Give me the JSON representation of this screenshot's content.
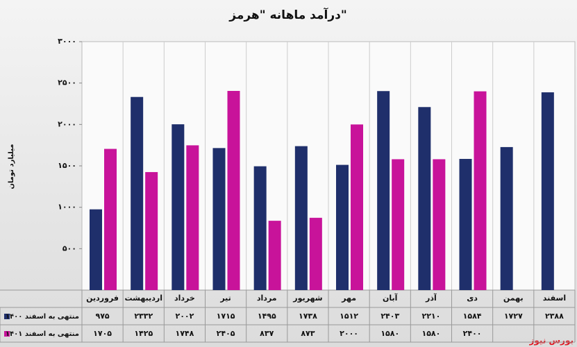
{
  "chart_data": {
    "type": "bar",
    "title": "درآمد ماهانه \"هرمز\"",
    "y_label": "میلیارد تومان",
    "source": "بورس نیوز",
    "categories": [
      "فروردین",
      "اردیبهشت",
      "خرداد",
      "تیر",
      "مرداد",
      "شهریور",
      "مهر",
      "آبان",
      "آذر",
      "دی",
      "بهمن",
      "اسفند"
    ],
    "series": [
      {
        "name": "منتهی به اسفند ۱۴۰۰",
        "color": "#1f2f6b",
        "values": [
          975,
          2332,
          2002,
          1715,
          1495,
          1738,
          1512,
          2403,
          2210,
          1584,
          1727,
          2388
        ],
        "value_labels": [
          "۹۷۵",
          "۲۳۳۲",
          "۲۰۰۲",
          "۱۷۱۵",
          "۱۴۹۵",
          "۱۷۳۸",
          "۱۵۱۲",
          "۲۴۰۳",
          "۲۲۱۰",
          "۱۵۸۴",
          "۱۷۲۷",
          "۲۳۸۸"
        ]
      },
      {
        "name": "منتهی به اسفند ۱۴۰۱",
        "color": "#c8139a",
        "values": [
          1705,
          1425,
          1748,
          2405,
          837,
          873,
          2000,
          1580,
          1580,
          2400,
          null,
          null
        ],
        "value_labels": [
          "۱۷۰۵",
          "۱۴۲۵",
          "۱۷۴۸",
          "۲۴۰۵",
          "۸۳۷",
          "۸۷۳",
          "۲۰۰۰",
          "۱۵۸۰",
          "۱۵۸۰",
          "۲۴۰۰",
          null,
          null
        ]
      }
    ],
    "ylim": [
      0,
      3000
    ],
    "yticks": [
      {
        "value": 500,
        "label": "۵۰۰"
      },
      {
        "value": 1000,
        "label": "۱۰۰۰"
      },
      {
        "value": 1500,
        "label": "۱۵۰۰"
      },
      {
        "value": 2000,
        "label": "۲۰۰۰"
      },
      {
        "value": 2500,
        "label": "۲۵۰۰"
      },
      {
        "value": 3000,
        "label": "۳۰۰۰"
      }
    ],
    "grid": true
  }
}
